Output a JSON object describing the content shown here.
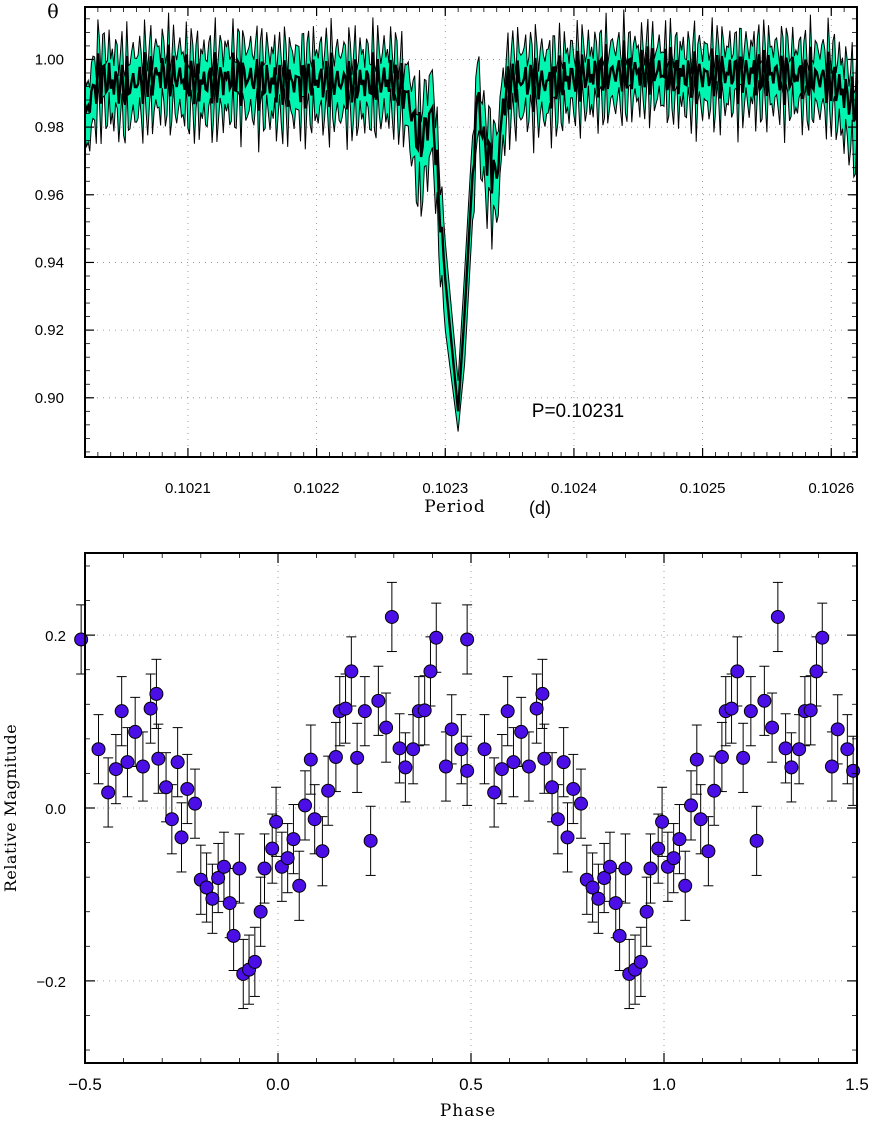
{
  "chart_data": [
    {
      "type": "line",
      "ylabel": "θ",
      "xlabel_part1": "Period",
      "xlabel_part2": "(d)",
      "annotation": "P=0.10231",
      "xlim": [
        0.10202,
        0.10262
      ],
      "ylim": [
        0.8825,
        1.0155
      ],
      "x_ticks": [
        0.1021,
        0.1022,
        0.1023,
        0.1024,
        0.1025,
        0.1026
      ],
      "x_tick_labels": [
        "0.1021",
        "0.1022",
        "0.1023",
        "0.1024",
        "0.1025",
        "0.1026"
      ],
      "y_ticks": [
        0.9,
        0.92,
        0.94,
        0.96,
        0.98,
        1.0
      ],
      "y_tick_labels": [
        "0.90",
        "0.92",
        "0.94",
        "0.96",
        "0.98",
        "1.00"
      ],
      "grid": true,
      "band_color": "#00f5b0",
      "line_color": "#000000",
      "series": [
        {
          "role": "mean",
          "x": [
            0.10202,
            0.10203,
            0.10205,
            0.10208,
            0.10211,
            0.10214,
            0.10217,
            0.1022,
            0.10223,
            0.10226,
            0.10227,
            0.10228,
            0.10229,
            0.102295,
            0.1023,
            0.10231,
            0.102315,
            0.10232,
            0.102325,
            0.10233,
            0.102335,
            0.10234,
            0.102345,
            0.10235,
            0.10236,
            0.10238,
            0.1024,
            0.10243,
            0.10246,
            0.10249,
            0.10252,
            0.10255,
            0.10258,
            0.1026,
            0.10262
          ],
          "y": [
            0.983,
            0.995,
            0.992,
            0.996,
            0.993,
            0.995,
            0.993,
            0.994,
            0.993,
            0.994,
            0.99,
            0.975,
            0.985,
            0.96,
            0.935,
            0.896,
            0.925,
            0.958,
            0.99,
            0.975,
            0.97,
            0.965,
            0.987,
            0.993,
            0.994,
            0.993,
            0.995,
            0.996,
            0.997,
            0.995,
            0.996,
            0.996,
            0.995,
            0.994,
            0.986
          ]
        },
        {
          "role": "upper",
          "x": [
            0.10202,
            0.10203,
            0.10205,
            0.10208,
            0.10211,
            0.10214,
            0.10217,
            0.1022,
            0.10223,
            0.10226,
            0.10227,
            0.10228,
            0.10229,
            0.102295,
            0.1023,
            0.10231,
            0.102315,
            0.10232,
            0.102325,
            0.10233,
            0.102335,
            0.10234,
            0.102345,
            0.10235,
            0.10236,
            0.10238,
            0.1024,
            0.10243,
            0.10246,
            0.10249,
            0.10252,
            0.10255,
            0.10258,
            0.1026,
            0.10262
          ],
          "y": [
            0.99,
            1.004,
            1.001,
            1.004,
            1.002,
            1.004,
            1.002,
            1.003,
            1.002,
            1.003,
            0.998,
            0.986,
            0.996,
            0.972,
            0.946,
            0.905,
            0.937,
            0.97,
            1.0,
            0.985,
            0.98,
            0.978,
            0.996,
            1.002,
            1.003,
            1.002,
            1.003,
            1.004,
            1.004,
            1.003,
            1.004,
            1.004,
            1.003,
            1.003,
            0.995
          ]
        },
        {
          "role": "lower",
          "x": [
            0.10202,
            0.10203,
            0.10205,
            0.10208,
            0.10211,
            0.10214,
            0.10217,
            0.1022,
            0.10223,
            0.10226,
            0.10227,
            0.10228,
            0.10229,
            0.102295,
            0.1023,
            0.10231,
            0.102315,
            0.10232,
            0.102325,
            0.10233,
            0.102335,
            0.10234,
            0.102345,
            0.10235,
            0.10236,
            0.10238,
            0.1024,
            0.10243,
            0.10246,
            0.10249,
            0.10252,
            0.10255,
            0.10258,
            0.1026,
            0.10262
          ],
          "y": [
            0.972,
            0.985,
            0.982,
            0.986,
            0.983,
            0.985,
            0.983,
            0.984,
            0.983,
            0.984,
            0.98,
            0.958,
            0.973,
            0.945,
            0.92,
            0.89,
            0.91,
            0.944,
            0.978,
            0.962,
            0.955,
            0.952,
            0.976,
            0.983,
            0.984,
            0.983,
            0.986,
            0.987,
            0.989,
            0.986,
            0.987,
            0.987,
            0.986,
            0.985,
            0.97
          ]
        }
      ]
    },
    {
      "type": "scatter",
      "xlabel": "Phase",
      "ylabel": "Relative Magnitude",
      "xlim": [
        -0.5,
        1.5
      ],
      "ylim": [
        0.295,
        -0.295
      ],
      "x_ticks": [
        -0.5,
        0.0,
        0.5,
        1.0,
        1.5
      ],
      "x_tick_labels": [
        "−0.5",
        "0.0",
        "0.5",
        "1.0",
        "1.5"
      ],
      "y_ticks": [
        -0.2,
        0.0,
        0.2
      ],
      "y_tick_labels": [
        "−0.2",
        "0.0",
        "0.2"
      ],
      "grid": true,
      "marker_color": "#4b0ee6",
      "error": 0.04,
      "x": [
        0.49,
        0.535,
        0.56,
        0.58,
        0.595,
        0.61,
        0.63,
        0.65,
        0.67,
        0.685,
        0.69,
        0.71,
        0.725,
        0.74,
        0.75,
        0.765,
        0.785,
        0.8,
        0.815,
        0.83,
        0.845,
        0.86,
        0.875,
        0.885,
        0.9,
        0.91,
        0.925,
        0.94,
        0.955,
        0.965,
        0.985,
        0.995,
        1.01,
        1.025,
        1.04,
        1.055,
        1.07,
        1.085,
        1.095,
        1.115,
        1.13,
        1.15,
        1.16,
        1.175,
        1.19,
        1.205,
        1.225,
        1.24,
        1.26,
        1.28,
        1.295,
        1.315,
        1.33,
        1.35,
        1.365,
        1.38,
        1.395,
        1.41,
        1.435,
        1.45,
        1.475,
        1.49
      ],
      "y": [
        0.195,
        0.068,
        0.018,
        0.045,
        0.112,
        0.053,
        0.088,
        0.048,
        0.115,
        0.132,
        0.057,
        0.024,
        -0.013,
        0.053,
        -0.034,
        0.022,
        0.005,
        -0.083,
        -0.092,
        -0.105,
        -0.081,
        -0.068,
        -0.11,
        -0.148,
        -0.07,
        -0.192,
        -0.187,
        -0.178,
        -0.12,
        -0.07,
        -0.047,
        -0.016,
        -0.068,
        -0.058,
        -0.036,
        -0.09,
        0.003,
        0.056,
        -0.013,
        -0.05,
        0.02,
        0.059,
        0.112,
        0.115,
        0.158,
        0.058,
        0.112,
        -0.038,
        0.124,
        0.093,
        0.221,
        0.069,
        0.047,
        0.068,
        0.112,
        0.113,
        0.158,
        0.197,
        0.048,
        0.091,
        0.068,
        0.043
      ]
    }
  ]
}
